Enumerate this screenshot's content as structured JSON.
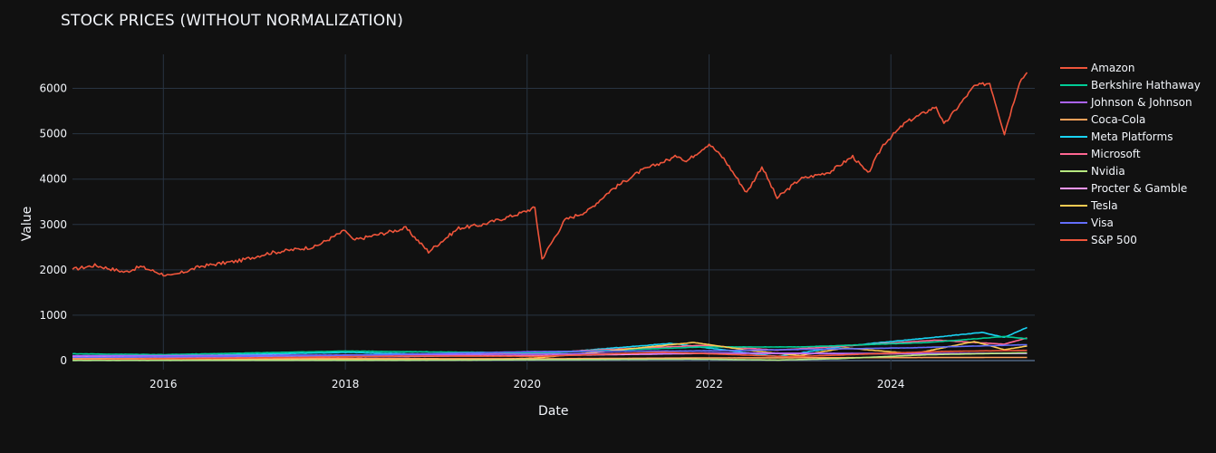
{
  "chart_data": {
    "type": "line",
    "title": "STOCK PRICES (WITHOUT NORMALIZATION)",
    "xlabel": "Date",
    "ylabel": "Value",
    "xlim": [
      "2015-01-01",
      "2025-08-01"
    ],
    "ylim": [
      -200,
      6750
    ],
    "x_ticks": [
      "2016",
      "2018",
      "2020",
      "2022",
      "2024"
    ],
    "y_ticks": [
      0,
      1000,
      2000,
      3000,
      4000,
      5000,
      6000
    ],
    "y_tick_labels": [
      "0",
      "1000",
      "2000",
      "3000",
      "4000",
      "5000",
      "6000"
    ],
    "grid": true,
    "legend_position": "right",
    "colors": {
      "background": "#111111",
      "grid": "#283442",
      "text": "#f2f5fa"
    },
    "legend": [
      "Amazon",
      "Berkshire Hathaway",
      "Johnson & Johnson",
      "Coca-Cola",
      "Meta Platforms",
      "Microsoft",
      "Nvidia",
      "Procter & Gamble",
      "Tesla",
      "Visa",
      "S&P 500"
    ],
    "series": [
      {
        "name": "S&P 500",
        "color": "#EF553B",
        "x": [
          "2015-01",
          "2015-04",
          "2015-08",
          "2015-10",
          "2016-01",
          "2016-02",
          "2016-06",
          "2016-11",
          "2017-03",
          "2017-09",
          "2018-01",
          "2018-02",
          "2018-09",
          "2018-12",
          "2019-04",
          "2019-07",
          "2019-12",
          "2020-02",
          "2020-03",
          "2020-06",
          "2020-09",
          "2020-12",
          "2021-04",
          "2021-09",
          "2021-10",
          "2022-01",
          "2022-03",
          "2022-06",
          "2022-08",
          "2022-10",
          "2023-01",
          "2023-05",
          "2023-08",
          "2023-10",
          "2023-12",
          "2024-03",
          "2024-07",
          "2024-08",
          "2024-12",
          "2025-02",
          "2025-04",
          "2025-06",
          "2025-07"
        ],
        "y": [
          2010,
          2100,
          1950,
          2070,
          1900,
          1860,
          2080,
          2200,
          2370,
          2510,
          2870,
          2650,
          2920,
          2400,
          2920,
          2990,
          3240,
          3370,
          2240,
          3100,
          3300,
          3750,
          4180,
          4520,
          4390,
          4780,
          4450,
          3700,
          4280,
          3580,
          4000,
          4160,
          4500,
          4120,
          4760,
          5250,
          5600,
          5200,
          6050,
          6120,
          5000,
          6150,
          6350
        ]
      },
      {
        "name": "Meta Platforms",
        "color": "#19d3f3",
        "x": [
          "2015-01",
          "2016-06",
          "2018-01",
          "2019-01",
          "2020-03",
          "2021-08",
          "2022-10",
          "2023-07",
          "2024-06",
          "2025-01",
          "2025-04",
          "2025-07"
        ],
        "y": [
          78,
          115,
          180,
          140,
          150,
          380,
          90,
          320,
          500,
          620,
          510,
          730
        ]
      },
      {
        "name": "Microsoft",
        "color": "#FF6692",
        "x": [
          "2015-01",
          "2017-01",
          "2019-01",
          "2020-06",
          "2021-12",
          "2022-10",
          "2023-12",
          "2024-07",
          "2025-04",
          "2025-07"
        ],
        "y": [
          45,
          62,
          100,
          200,
          335,
          230,
          375,
          450,
          360,
          500
        ]
      },
      {
        "name": "Berkshire Hathaway",
        "color": "#00cc96",
        "x": [
          "2015-01",
          "2016-01",
          "2018-01",
          "2020-03",
          "2021-12",
          "2023-01",
          "2024-06",
          "2025-04",
          "2025-07"
        ],
        "y": [
          150,
          130,
          210,
          170,
          300,
          300,
          400,
          530,
          480
        ]
      },
      {
        "name": "Tesla",
        "color": "#FECB52",
        "x": [
          "2015-01",
          "2019-06",
          "2020-02",
          "2020-08",
          "2021-11",
          "2022-06",
          "2023-01",
          "2023-07",
          "2024-04",
          "2024-12",
          "2025-04",
          "2025-07"
        ],
        "y": [
          15,
          15,
          55,
          150,
          400,
          230,
          110,
          280,
          150,
          420,
          240,
          320
        ]
      },
      {
        "name": "Procter & Gamble",
        "color": "#FF97FF",
        "x": [
          "2015-01",
          "2018-01",
          "2020-03",
          "2022-01",
          "2024-01",
          "2025-07"
        ],
        "y": [
          90,
          85,
          110,
          160,
          150,
          160
        ]
      },
      {
        "name": "Johnson & Johnson",
        "color": "#ab63fa",
        "x": [
          "2015-01",
          "2017-01",
          "2019-01",
          "2021-12",
          "2023-06",
          "2025-07"
        ],
        "y": [
          105,
          115,
          130,
          170,
          160,
          155
        ]
      },
      {
        "name": "Visa",
        "color": "#636efa",
        "x": [
          "2015-01",
          "2018-01",
          "2020-02",
          "2022-01",
          "2024-03",
          "2025-07"
        ],
        "y": [
          65,
          115,
          200,
          215,
          280,
          350
        ]
      },
      {
        "name": "Coca-Cola",
        "color": "#FFA15A",
        "x": [
          "2015-01",
          "2018-01",
          "2020-03",
          "2022-01",
          "2025-07"
        ],
        "y": [
          42,
          45,
          40,
          60,
          70
        ]
      },
      {
        "name": "Amazon",
        "color": "#EF553B",
        "x": [
          "2015-01",
          "2018-09",
          "2020-03",
          "2021-07",
          "2022-12",
          "2024-07",
          "2025-07"
        ],
        "y": [
          15,
          100,
          95,
          185,
          85,
          200,
          225
        ]
      },
      {
        "name": "Nvidia",
        "color": "#B6E880",
        "x": [
          "2015-01",
          "2018-09",
          "2021-11",
          "2022-10",
          "2023-06",
          "2024-06",
          "2025-07"
        ],
        "y": [
          5,
          7,
          33,
          12,
          42,
          130,
          170
        ]
      }
    ]
  }
}
